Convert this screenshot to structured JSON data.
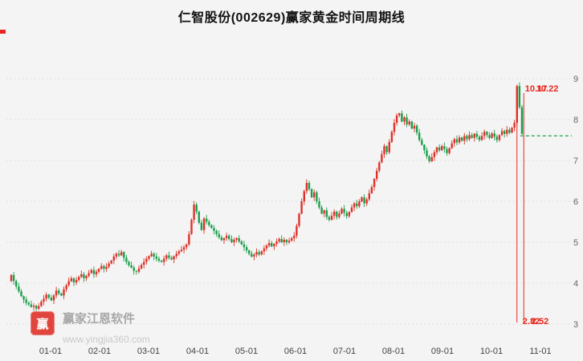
{
  "title": "仁智股份(002629)赢家黄金时间周期线",
  "watermark": {
    "logo_text": "赢",
    "name": "赢家江恩软件",
    "url": "www.yingjia360.com"
  },
  "chart_data": {
    "type": "candlestick",
    "title": "仁智股份(002629)赢家黄金时间周期线",
    "xlabel": "",
    "ylabel": "",
    "x_ticks": [
      "01-01",
      "02-01",
      "03-01",
      "04-01",
      "05-01",
      "06-01",
      "07-01",
      "08-01",
      "09-01",
      "10-01",
      "11-01"
    ],
    "y_ticks": [
      9,
      8,
      7,
      6,
      5,
      4,
      3
    ],
    "ylim": [
      3,
      9
    ],
    "grid": "horizontal-dotted",
    "first_open": 4.05,
    "closes": [
      4.2,
      4.05,
      3.92,
      3.8,
      3.68,
      3.6,
      3.52,
      3.48,
      3.42,
      3.45,
      3.38,
      3.44,
      3.55,
      3.62,
      3.72,
      3.65,
      3.58,
      3.7,
      3.82,
      3.75,
      3.7,
      3.85,
      3.95,
      4.05,
      4.12,
      4.02,
      4.08,
      4.15,
      4.22,
      4.12,
      4.18,
      4.25,
      4.32,
      4.22,
      4.28,
      4.35,
      4.42,
      4.35,
      4.4,
      4.48,
      4.55,
      4.65,
      4.72,
      4.68,
      4.76,
      4.62,
      4.52,
      4.44,
      4.38,
      4.3,
      4.28,
      4.36,
      4.45,
      4.52,
      4.6,
      4.66,
      4.72,
      4.65,
      4.6,
      4.55,
      4.52,
      4.6,
      4.68,
      4.62,
      4.58,
      4.66,
      4.72,
      4.78,
      4.82,
      4.88,
      4.95,
      5.2,
      5.55,
      5.92,
      5.75,
      5.48,
      5.3,
      5.58,
      5.5,
      5.42,
      5.35,
      5.28,
      5.2,
      5.12,
      5.05,
      5.1,
      5.16,
      5.08,
      5.0,
      5.06,
      5.1,
      5.02,
      4.95,
      4.88,
      4.8,
      4.72,
      4.65,
      4.7,
      4.76,
      4.7,
      4.78,
      4.85,
      4.92,
      4.98,
      4.9,
      4.96,
      5.02,
      5.08,
      5.0,
      5.06,
      5.0,
      5.04,
      5.1,
      5.16,
      5.4,
      5.7,
      6.0,
      6.25,
      6.45,
      6.3,
      6.1,
      6.22,
      6.0,
      5.85,
      5.7,
      5.78,
      5.62,
      5.55,
      5.65,
      5.75,
      5.62,
      5.7,
      5.82,
      5.72,
      5.64,
      5.74,
      5.85,
      5.95,
      5.88,
      6.0,
      6.1,
      5.95,
      6.05,
      6.2,
      6.35,
      6.55,
      6.75,
      6.95,
      7.15,
      7.35,
      7.2,
      7.45,
      7.7,
      7.92,
      8.1,
      8.15,
      7.95,
      8.05,
      7.88,
      7.95,
      7.78,
      7.85,
      7.68,
      7.5,
      7.38,
      7.25,
      7.1,
      6.98,
      7.08,
      7.2,
      7.32,
      7.25,
      7.35,
      7.28,
      7.18,
      7.3,
      7.42,
      7.52,
      7.44,
      7.56,
      7.48,
      7.6,
      7.52,
      7.62,
      7.55,
      7.65,
      7.58,
      7.5,
      7.6,
      7.7,
      7.62,
      7.55,
      7.66,
      7.58,
      7.5,
      7.62,
      7.72,
      7.65,
      7.75,
      7.68,
      7.8,
      7.92,
      8.82,
      8.3,
      7.65
    ],
    "colors": {
      "up": "#dd3229",
      "down": "#1b9e4b"
    },
    "cycle_lines": {
      "anchor_index": 202,
      "top_labels": [
        "10.17",
        "10.22"
      ],
      "bottom_labels": [
        "2.82",
        "2.52"
      ],
      "color": "#e8281e"
    },
    "target_line": {
      "price": 7.6,
      "color": "#1fa34e",
      "style": "dashed"
    },
    "legend": "none"
  }
}
